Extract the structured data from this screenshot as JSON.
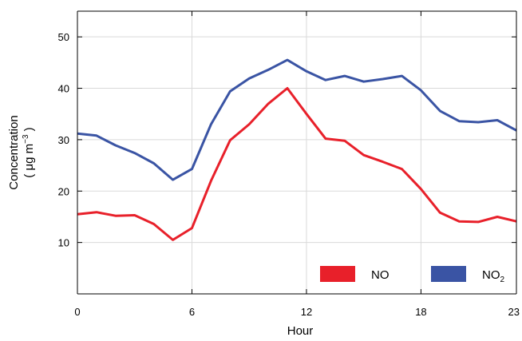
{
  "chart_data": {
    "type": "line",
    "xlabel": "Hour",
    "ylabel": "Concentration",
    "ylabel_unit": {
      "open": "( μg m",
      "exponent": "−3",
      "close": " )"
    },
    "xlim": [
      0,
      23
    ],
    "ylim": [
      0,
      55
    ],
    "xticks": [
      0,
      6,
      12,
      18,
      23
    ],
    "yticks": [
      10,
      20,
      30,
      40,
      50
    ],
    "grid": true,
    "legend_position": "bottom-right",
    "x": [
      0,
      1,
      2,
      3,
      4,
      5,
      6,
      7,
      8,
      9,
      10,
      11,
      12,
      13,
      14,
      15,
      16,
      17,
      18,
      19,
      20,
      21,
      22,
      23
    ],
    "series": [
      {
        "name": "NO",
        "label_base": "NO",
        "label_sub": "",
        "color": "#e8202a",
        "values": [
          15.5,
          15.9,
          15.2,
          15.3,
          13.6,
          10.5,
          12.8,
          22.0,
          29.9,
          33.0,
          37.0,
          40.0,
          35.0,
          30.2,
          29.8,
          27.0,
          25.7,
          24.3,
          20.4,
          15.8,
          14.1,
          14.0,
          15.0,
          14.1
        ]
      },
      {
        "name": "NO2",
        "label_base": "NO",
        "label_sub": "2",
        "color": "#3a54a4",
        "values": [
          31.2,
          30.8,
          28.9,
          27.4,
          25.4,
          22.2,
          24.3,
          33.0,
          39.4,
          41.9,
          43.6,
          45.5,
          43.3,
          41.6,
          42.4,
          41.3,
          41.8,
          42.4,
          39.6,
          35.6,
          33.6,
          33.4,
          33.8,
          31.8
        ]
      }
    ]
  }
}
